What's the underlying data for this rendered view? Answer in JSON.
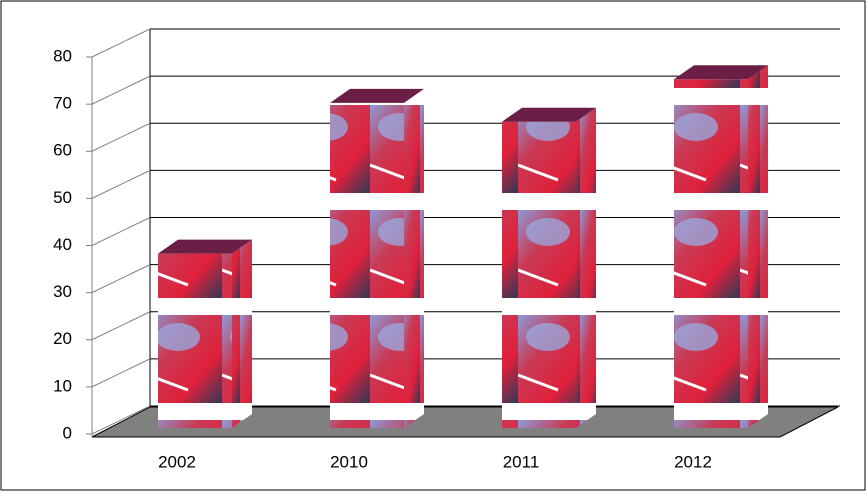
{
  "chart_data": {
    "type": "bar3d",
    "categories": [
      "2002",
      "2010",
      "2011",
      "2012"
    ],
    "values": [
      37,
      69,
      65,
      74
    ],
    "color": "#d42a3c",
    "ylim": [
      0,
      80
    ],
    "yticks": [
      0,
      10,
      20,
      30,
      40,
      50,
      60,
      70,
      80
    ],
    "grid": true
  }
}
